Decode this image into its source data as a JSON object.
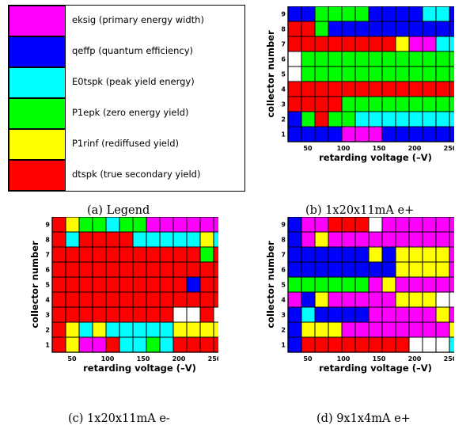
{
  "colors": {
    "magenta": "#ff00ff",
    "blue": "#0000ff",
    "cyan": "#00ffff",
    "green": "#00ff00",
    "yellow": "#ffff00",
    "red": "#ff0000",
    "white": "#ffffff"
  },
  "legend": {
    "items": [
      {
        "color": "#ff00ff",
        "label": "eksig (primary energy width)"
      },
      {
        "color": "#0000ff",
        "label": "qeffp (quantum efficiency)"
      },
      {
        "color": "#00ffff",
        "label": "E0tspk (peak yield energy)"
      },
      {
        "color": "#00ff00",
        "label": "P1epk (zero energy yield)"
      },
      {
        "color": "#ffff00",
        "label": "P1rinf (rediffused yield)"
      },
      {
        "color": "#ff0000",
        "label": "dtspk (true secondary yield)"
      }
    ]
  },
  "captions": {
    "a": "(a)  Legend",
    "b": "(b)  1x20x11mA e+",
    "c": "(c)  1x20x11mA e-",
    "d": "(d)  9x1x4mA e+"
  },
  "chart_data": [
    {
      "type": "heatmap",
      "id": "b",
      "xlabel": "retarding voltage (–V)",
      "ylabel": "collector number",
      "x_ticks": [
        "50",
        "100",
        "150",
        "200",
        "250"
      ],
      "y_ticks": [
        "1",
        "2",
        "3",
        "4",
        "5",
        "6",
        "7",
        "8",
        "9"
      ],
      "color_key": {
        "M": "eksig",
        "B": "qeffp",
        "C": "E0tspk",
        "G": "P1epk",
        "Y": "P1rinf",
        "R": "dtspk",
        "W": "none"
      },
      "rows_top_to_bottom": [
        "BBGGGGBBBBCCB",
        "RRGBBBBBBBBBB",
        "RRRRRRRRYMMCC",
        "WGGGGGGGGGGGG",
        "WGGGGGGGGGGGG",
        "RRRRRRRRRRRRR",
        "RRRRGGGGGGGGG",
        "BGRGGCCCCCCCC",
        "BBBBMMMBBBBBB"
      ]
    },
    {
      "type": "heatmap",
      "id": "c",
      "xlabel": "retarding voltage (–V)",
      "ylabel": "collector number",
      "x_ticks": [
        "50",
        "100",
        "150",
        "200",
        "250"
      ],
      "y_ticks": [
        "1",
        "2",
        "3",
        "4",
        "5",
        "6",
        "7",
        "8",
        "9"
      ],
      "color_key": {
        "M": "eksig",
        "B": "qeffp",
        "C": "E0tspk",
        "G": "P1epk",
        "Y": "P1rinf",
        "R": "dtspk",
        "W": "none"
      },
      "rows_top_to_bottom": [
        "RYGGCGGMMMMMM",
        "RCRRRRCCCCCYC",
        "RRRRRRRRRRRGR",
        "RRRRRRRRRRRRR",
        "RRRRRRRRRRBRR",
        "RRRRRRRRRRRRR",
        "RRRRRRRRRWWRW",
        "RYCYCCCCCYYYY",
        "RYMMRCCGCRRRR"
      ]
    },
    {
      "type": "heatmap",
      "id": "d",
      "xlabel": "retarding voltage (–V)",
      "ylabel": "collector number",
      "x_ticks": [
        "50",
        "100",
        "150",
        "200",
        "250"
      ],
      "y_ticks": [
        "1",
        "2",
        "3",
        "4",
        "5",
        "6",
        "7",
        "8",
        "9"
      ],
      "color_key": {
        "M": "eksig",
        "B": "qeffp",
        "C": "E0tspk",
        "G": "P1epk",
        "Y": "P1rinf",
        "R": "dtspk",
        "W": "none"
      },
      "rows_top_to_bottom": [
        "BMMRRRWMMMMMM",
        "BMYMMMMMMMMMM",
        "BBBBBBYBYYYYM",
        "BBBBBBBBYYYYM",
        "GGGGGGMYMMMMM",
        "MBYMMMMMYYYWW",
        "BCBBBBMMMMMYM",
        "BYYYMMMMMMMMY",
        "BRRRRRRRRWWWC"
      ]
    }
  ]
}
